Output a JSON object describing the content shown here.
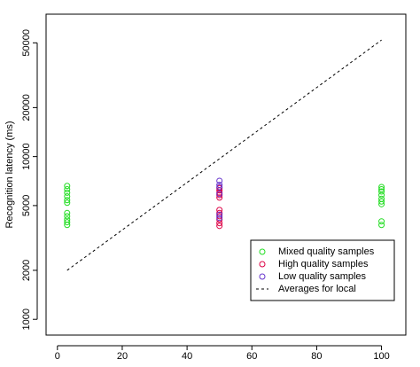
{
  "chart_data": {
    "type": "scatter",
    "title": "",
    "xlabel": "",
    "ylabel": "Recognition latency (ms)",
    "y_scale": "log",
    "xlim": [
      -3.5,
      107.5
    ],
    "ylim": [
      800,
      75000
    ],
    "x_ticks": [
      0,
      20,
      40,
      60,
      80,
      100
    ],
    "y_ticks": [
      1000,
      2000,
      5000,
      10000,
      20000,
      50000
    ],
    "grid": false,
    "legend_position": "bottom-right",
    "series": [
      {
        "name": "Mixed quality samples",
        "color": "#22dd22",
        "marker": "open-circle",
        "points": [
          [
            3,
            6600
          ],
          [
            3,
            6300
          ],
          [
            3,
            6000
          ],
          [
            3,
            5700
          ],
          [
            3,
            5400
          ],
          [
            3,
            5200
          ],
          [
            3,
            4500
          ],
          [
            3,
            4300
          ],
          [
            3,
            4100
          ],
          [
            3,
            3950
          ],
          [
            3,
            3800
          ],
          [
            100,
            6500
          ],
          [
            100,
            6300
          ],
          [
            100,
            6100
          ],
          [
            100,
            5800
          ],
          [
            100,
            5500
          ],
          [
            100,
            5300
          ],
          [
            100,
            5100
          ],
          [
            100,
            4000
          ],
          [
            100,
            3800
          ]
        ]
      },
      {
        "name": "High quality samples",
        "color": "#dd0044",
        "marker": "open-circle",
        "points": [
          [
            50,
            6400
          ],
          [
            50,
            6200
          ],
          [
            50,
            6000
          ],
          [
            50,
            5800
          ],
          [
            50,
            5600
          ],
          [
            50,
            4700
          ],
          [
            50,
            4500
          ],
          [
            50,
            4300
          ],
          [
            50,
            4100
          ],
          [
            50,
            3900
          ],
          [
            50,
            3750
          ]
        ]
      },
      {
        "name": "Low quality samples",
        "color": "#6633cc",
        "marker": "open-circle",
        "points": [
          [
            50,
            7100
          ],
          [
            50,
            6700
          ],
          [
            50,
            6500
          ],
          [
            50,
            5900
          ],
          [
            50,
            4400
          ],
          [
            50,
            4200
          ]
        ]
      }
    ],
    "lines": [
      {
        "name": "Averages for local",
        "color": "#000000",
        "style": "dashed",
        "points": [
          [
            3,
            2000
          ],
          [
            100,
            52000
          ]
        ]
      }
    ]
  }
}
